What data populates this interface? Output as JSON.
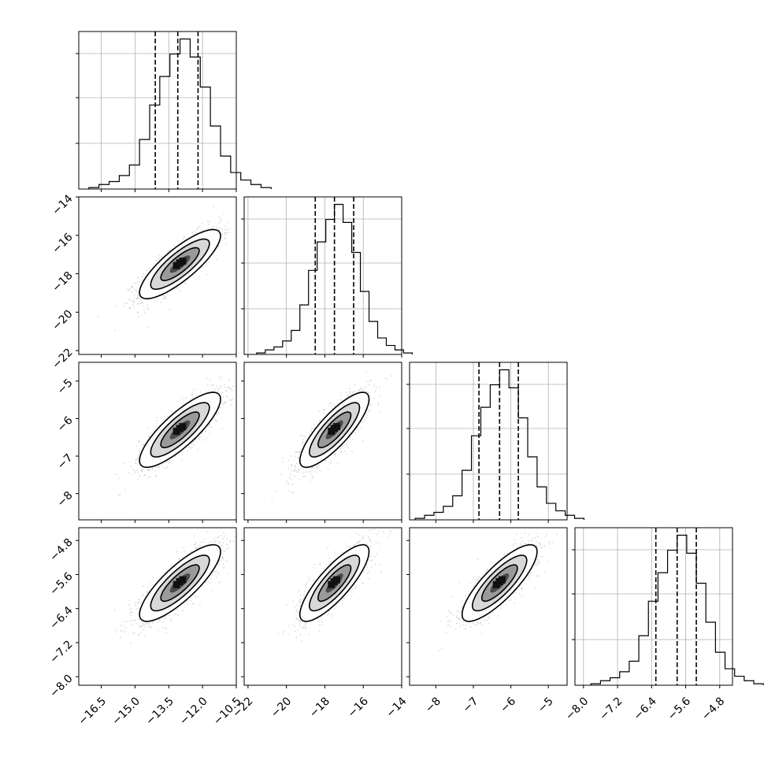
{
  "chart_data": {
    "type": "corner",
    "title": "",
    "grid": true,
    "parameters": [
      {
        "index": 0,
        "mean": -13.0,
        "sd": 0.9,
        "range": [
          -17.5,
          -10.5
        ],
        "ticks": [
          -16.5,
          -15.0,
          -13.5,
          -12.0,
          -10.5
        ],
        "tick_labels": [
          "−16.5",
          "−15.0",
          "−13.5",
          "−12.0",
          "−10.5"
        ],
        "quantiles": [
          -14.1,
          -13.1,
          -12.2
        ]
      },
      {
        "index": 1,
        "mean": -17.5,
        "sd": 0.9,
        "range": [
          -22.2,
          -14.0
        ],
        "ticks": [
          -22,
          -20,
          -18,
          -16,
          -14
        ],
        "tick_labels": [
          "−22",
          "−20",
          "−18",
          "−16",
          "−14"
        ],
        "quantiles": [
          -18.5,
          -17.5,
          -16.5
        ]
      },
      {
        "index": 2,
        "mean": -6.3,
        "sd": 0.5,
        "range": [
          -8.7,
          -4.5
        ],
        "ticks": [
          -8,
          -7,
          -6,
          -5
        ],
        "tick_labels": [
          "−8",
          "−7",
          "−6",
          "−5"
        ],
        "quantiles": [
          -6.85,
          -6.3,
          -5.8
        ]
      },
      {
        "index": 3,
        "mean": -5.8,
        "sd": 0.45,
        "range": [
          -8.2,
          -4.5
        ],
        "ticks": [
          -8.0,
          -7.2,
          -6.4,
          -5.6,
          -4.8
        ],
        "tick_labels": [
          "−8.0",
          "−7.2",
          "−6.4",
          "−5.6",
          "−4.8"
        ],
        "quantiles": [
          -6.3,
          -5.8,
          -5.35
        ]
      }
    ],
    "hist_counts": [
      [
        1,
        3,
        5,
        9,
        16,
        33,
        56,
        75,
        90,
        100,
        88,
        68,
        42,
        22,
        11,
        6,
        3,
        1
      ],
      [
        1,
        3,
        5,
        9,
        16,
        33,
        56,
        75,
        90,
        100,
        88,
        68,
        42,
        22,
        11,
        6,
        3,
        1
      ],
      [
        1,
        3,
        5,
        9,
        16,
        33,
        56,
        75,
        90,
        100,
        88,
        68,
        42,
        22,
        11,
        6,
        3,
        1
      ],
      [
        1,
        3,
        5,
        9,
        16,
        33,
        56,
        75,
        90,
        100,
        88,
        68,
        42,
        22,
        11,
        6,
        3,
        1
      ]
    ],
    "correlation": 0.82
  }
}
